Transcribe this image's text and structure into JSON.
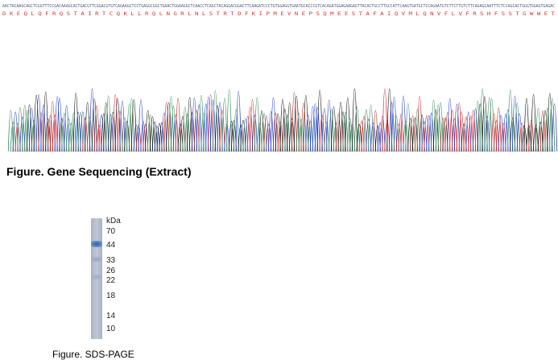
{
  "sequencing": {
    "bases_text": "AACTACAAGCAGCTCGGTTTCCGACAAAGCACTGACGTTCGGACGTGTCAGAAGCTCCTGAGGCGGCTGAACTGGAAGGCTCAACCTCAGCTACAGGACGGACTTCAAGATCCCTGTGGAGGTGAATGCACCCGTCACAGATGGAGAAGAGTTACACTGCCTTGCCATTCAAGTGATGCTCCAGAATGTCTTCTTGTCTTCAGAGCAATTTCTCCAGCACTGGGTGGAGTGAGAC",
    "amino_acids_text": "D K E Q L Q F R Q S T A I R T C Q K L L R Q L N G R L N L S T R T D F K I P M E V N E P S Q M E E S T A F A I Q V M L Q N V F L V F R S H F S S T G W W E T",
    "base_colors": {
      "A": "#2e8b57",
      "C": "#1f3fd0",
      "G": "#111111",
      "T": "#d42020"
    },
    "amino_acid_color": "#e03030"
  },
  "figure1_caption": "Figure. Gene Sequencing (Extract)",
  "gel": {
    "unit_label": "kDa",
    "ladder": [
      "70",
      "44",
      "33",
      "26",
      "22",
      "18",
      "14",
      "10"
    ],
    "band_color": "#3f6fb0"
  },
  "figure2_caption": "Figure. SDS-PAGE"
}
